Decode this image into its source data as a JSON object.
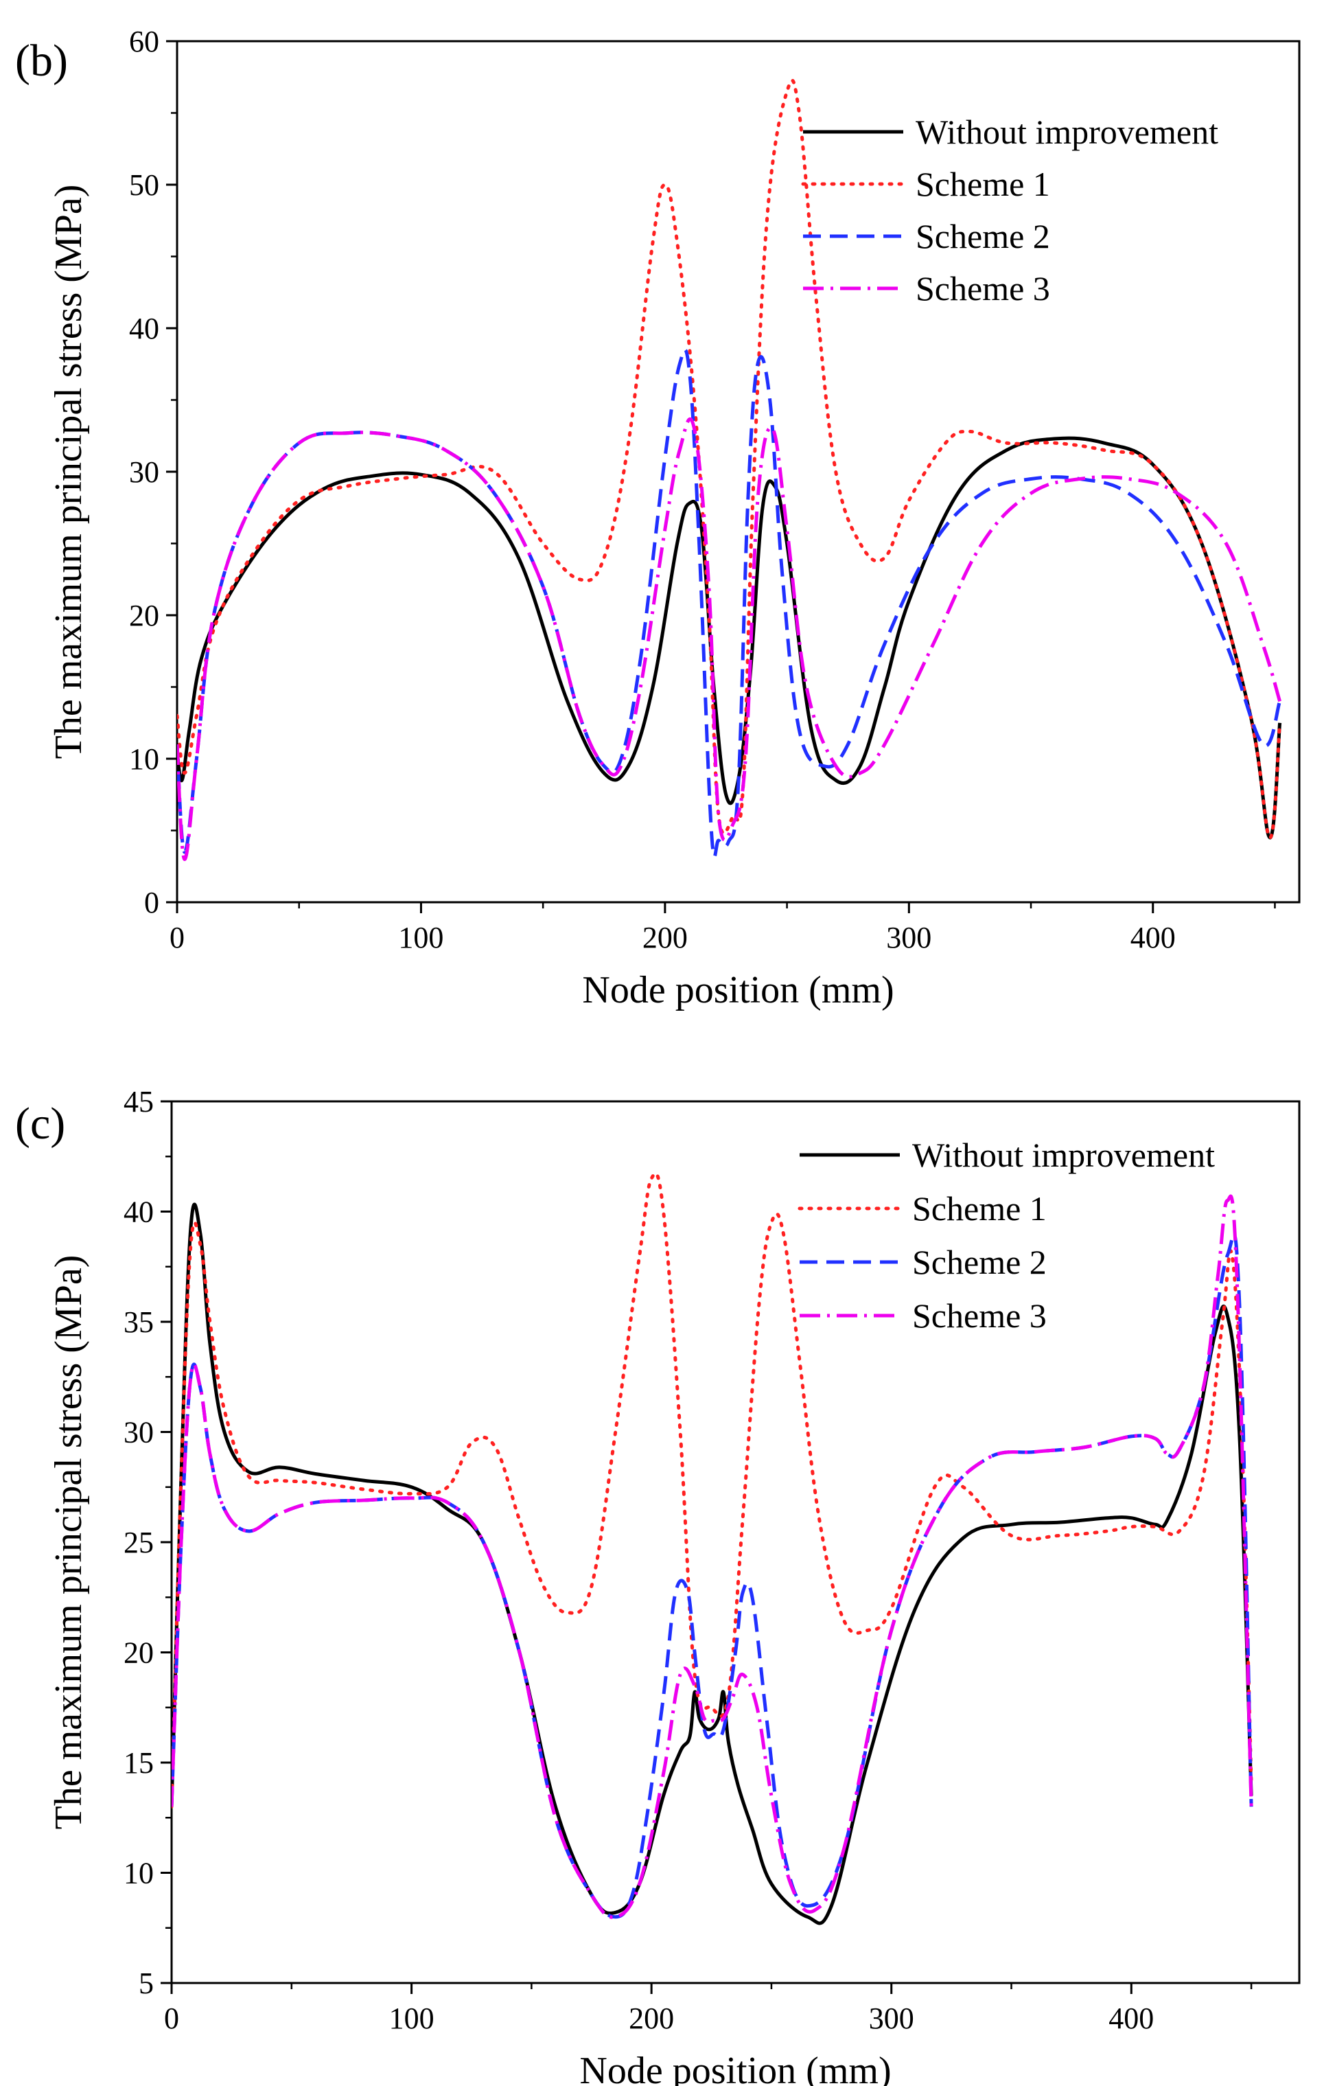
{
  "figure": {
    "background": "#ffffff"
  },
  "chart_data": [
    {
      "type": "line",
      "panel_label": "(b)",
      "title": "",
      "xlabel": "Node position (mm)",
      "ylabel": "The  maximum principal stress (MPa)",
      "xlim": [
        0,
        460
      ],
      "ylim": [
        0,
        60
      ],
      "xticks": [
        0,
        100,
        200,
        300,
        400
      ],
      "yticks": [
        0,
        10,
        20,
        30,
        40,
        50,
        60
      ],
      "grid": false,
      "legend_position": "top-right",
      "series": [
        {
          "name": "Without improvement",
          "color": "#000000",
          "style": "solid",
          "x": [
            0,
            2,
            5,
            10,
            20,
            40,
            60,
            80,
            100,
            120,
            140,
            160,
            175,
            185,
            195,
            205,
            210,
            215,
            220,
            225,
            230,
            235,
            240,
            245,
            250,
            260,
            270,
            280,
            290,
            300,
            320,
            340,
            360,
            380,
            400,
            420,
            440,
            448,
            452
          ],
          "y": [
            10.5,
            8.5,
            12,
            17,
            21,
            26,
            28.8,
            29.7,
            29.8,
            28.5,
            24,
            14,
            9,
            9.5,
            15,
            25,
            27.8,
            26,
            15,
            7.5,
            8.5,
            16,
            27.5,
            29,
            25,
            12,
            8.5,
            9.5,
            15,
            21,
            28.5,
            31.5,
            32.3,
            32,
            30.5,
            25,
            13,
            4.5,
            12.5
          ]
        },
        {
          "name": "Scheme 1",
          "color": "#ff2020",
          "style": "dotted",
          "x": [
            0,
            3,
            8,
            15,
            30,
            50,
            70,
            90,
            110,
            130,
            150,
            165,
            175,
            185,
            195,
            200,
            205,
            212,
            218,
            222,
            228,
            232,
            236,
            242,
            250,
            255,
            262,
            270,
            280,
            290,
            300,
            315,
            325,
            340,
            360,
            380,
            400,
            420,
            440,
            448,
            452
          ],
          "y": [
            13,
            9,
            13,
            19,
            24,
            28,
            29,
            29.5,
            29.8,
            30,
            25,
            22.5,
            24,
            32,
            46,
            50,
            46,
            35,
            20,
            6,
            6,
            8,
            28,
            48,
            56.5,
            55,
            42,
            30,
            25,
            24,
            28,
            32,
            32.8,
            32,
            32,
            31.5,
            30.5,
            25,
            13,
            4.5,
            12.5
          ]
        },
        {
          "name": "Scheme 2",
          "color": "#2030ff",
          "style": "dashed",
          "x": [
            0,
            3,
            8,
            15,
            30,
            50,
            70,
            90,
            110,
            130,
            150,
            165,
            175,
            182,
            190,
            200,
            206,
            210,
            214,
            219,
            222,
            226,
            230,
            234,
            238,
            243,
            248,
            255,
            265,
            275,
            290,
            310,
            330,
            350,
            370,
            390,
            410,
            430,
            445,
            452
          ],
          "y": [
            11,
            3.5,
            10,
            20,
            27.5,
            32,
            32.7,
            32.5,
            31.5,
            28.5,
            22,
            13,
            9.5,
            10,
            17,
            31,
            37.5,
            37,
            25,
            5,
            4.3,
            4.2,
            8,
            28,
            37.5,
            35,
            23,
            12,
            9.5,
            11,
            18,
            25,
            28.5,
            29.5,
            29.5,
            28.5,
            25,
            18,
            11,
            14
          ]
        },
        {
          "name": "Scheme 3",
          "color": "#ee00ee",
          "style": "dashdot",
          "x": [
            0,
            3,
            8,
            15,
            30,
            50,
            70,
            90,
            110,
            130,
            150,
            165,
            175,
            182,
            190,
            200,
            206,
            212,
            218,
            222,
            228,
            233,
            238,
            244,
            250,
            258,
            270,
            280,
            290,
            310,
            330,
            350,
            370,
            390,
            410,
            430,
            445,
            452
          ],
          "y": [
            11,
            3,
            10,
            20,
            27.5,
            32,
            32.7,
            32.5,
            31.5,
            28.5,
            22,
            13,
            9.5,
            9.5,
            15,
            26,
            31.5,
            33,
            22,
            6,
            5.5,
            10,
            28,
            33,
            26,
            15,
            9.5,
            9,
            11,
            18,
            25,
            28.5,
            29.5,
            29.5,
            28.5,
            25,
            18,
            14
          ]
        }
      ]
    },
    {
      "type": "line",
      "panel_label": "(c)",
      "title": "",
      "xlabel": "Node position (mm)",
      "ylabel": "The  maximum principal stress (MPa)",
      "xlim": [
        0,
        470
      ],
      "ylim": [
        5,
        45
      ],
      "xticks": [
        0,
        100,
        200,
        300,
        400
      ],
      "yticks": [
        5,
        10,
        15,
        20,
        25,
        30,
        35,
        40,
        45
      ],
      "grid": false,
      "legend_position": "top-right",
      "series": [
        {
          "name": "Without improvement",
          "color": "#000000",
          "style": "solid",
          "x": [
            0,
            4,
            8,
            12,
            16,
            22,
            32,
            45,
            60,
            80,
            100,
            115,
            130,
            145,
            160,
            175,
            185,
            195,
            205,
            212,
            216,
            218,
            220,
            224,
            228,
            230,
            232,
            236,
            242,
            250,
            265,
            275,
            290,
            310,
            330,
            350,
            370,
            390,
            400,
            410,
            415,
            425,
            435,
            440,
            445,
            450
          ],
          "y": [
            13,
            28,
            39.3,
            39,
            34,
            30,
            28.2,
            28.4,
            28.1,
            27.8,
            27.5,
            26.5,
            25,
            20,
            13,
            9,
            8.2,
            9.5,
            13.5,
            15.5,
            16.2,
            18.2,
            17,
            16.5,
            17,
            18.2,
            16,
            14,
            12,
            9.5,
            8,
            8.5,
            15,
            22,
            25.2,
            25.8,
            25.9,
            26.1,
            26.1,
            25.8,
            26,
            29,
            34.5,
            35.3,
            30,
            13.5
          ]
        },
        {
          "name": "Scheme 1",
          "color": "#ff2020",
          "style": "dotted",
          "x": [
            0,
            4,
            8,
            12,
            16,
            22,
            32,
            45,
            60,
            80,
            100,
            115,
            125,
            135,
            145,
            155,
            165,
            175,
            185,
            195,
            200,
            205,
            212,
            218,
            225,
            232,
            238,
            245,
            250,
            255,
            262,
            270,
            280,
            290,
            300,
            318,
            330,
            350,
            370,
            390,
            400,
            410,
            420,
            430,
            438,
            442,
            446,
            450
          ],
          "y": [
            13,
            28,
            38.5,
            38.5,
            35,
            31,
            28,
            27.8,
            27.7,
            27.4,
            27.2,
            27.5,
            29.5,
            29.3,
            26,
            23,
            21.8,
            23,
            30,
            38,
            41.5,
            40,
            30,
            19,
            17.5,
            18,
            26,
            36,
            39.5,
            39,
            33,
            26,
            21.5,
            21,
            22,
            27.5,
            27.5,
            25.3,
            25.3,
            25.5,
            25.7,
            25.7,
            25.5,
            28,
            35,
            38,
            30,
            14
          ]
        },
        {
          "name": "Scheme 2",
          "color": "#2030ff",
          "style": "dashed",
          "x": [
            0,
            4,
            8,
            12,
            16,
            22,
            32,
            45,
            60,
            80,
            100,
            115,
            130,
            145,
            160,
            175,
            185,
            192,
            198,
            205,
            210,
            215,
            218,
            222,
            226,
            230,
            235,
            238,
            242,
            248,
            255,
            265,
            280,
            300,
            320,
            340,
            360,
            380,
            400,
            410,
            415,
            420,
            430,
            440,
            445,
            450
          ],
          "y": [
            13,
            25,
            32.5,
            32,
            29,
            26.5,
            25.5,
            26.3,
            26.8,
            26.9,
            27,
            26.8,
            25,
            20,
            12.5,
            9,
            8,
            9,
            12.5,
            18,
            22.7,
            22.8,
            20,
            16.5,
            16.3,
            16.5,
            20,
            22.7,
            22.5,
            17,
            11,
            8.5,
            11,
            21,
            26.5,
            28.8,
            29.1,
            29.3,
            29.8,
            29.7,
            29,
            29.2,
            32,
            38,
            36,
            13
          ]
        },
        {
          "name": "Scheme 3",
          "color": "#ee00ee",
          "style": "dashdot",
          "x": [
            0,
            4,
            8,
            12,
            16,
            22,
            32,
            45,
            60,
            80,
            100,
            115,
            130,
            145,
            160,
            175,
            185,
            195,
            205,
            212,
            218,
            222,
            226,
            230,
            234,
            238,
            244,
            250,
            258,
            268,
            280,
            300,
            320,
            340,
            360,
            380,
            400,
            410,
            415,
            420,
            430,
            436,
            440,
            444,
            450
          ],
          "y": [
            13,
            25,
            32.5,
            32,
            29,
            26.5,
            25.5,
            26.3,
            26.8,
            26.9,
            27,
            26.8,
            25,
            20,
            12.5,
            9,
            8,
            9.5,
            14.5,
            19,
            18.5,
            17,
            16.9,
            17,
            18,
            19,
            17.5,
            13.5,
            9.5,
            8.3,
            11,
            21,
            26.5,
            28.8,
            29.1,
            29.3,
            29.8,
            29.7,
            29,
            29.2,
            32,
            37,
            40.5,
            37,
            13
          ]
        }
      ]
    }
  ]
}
